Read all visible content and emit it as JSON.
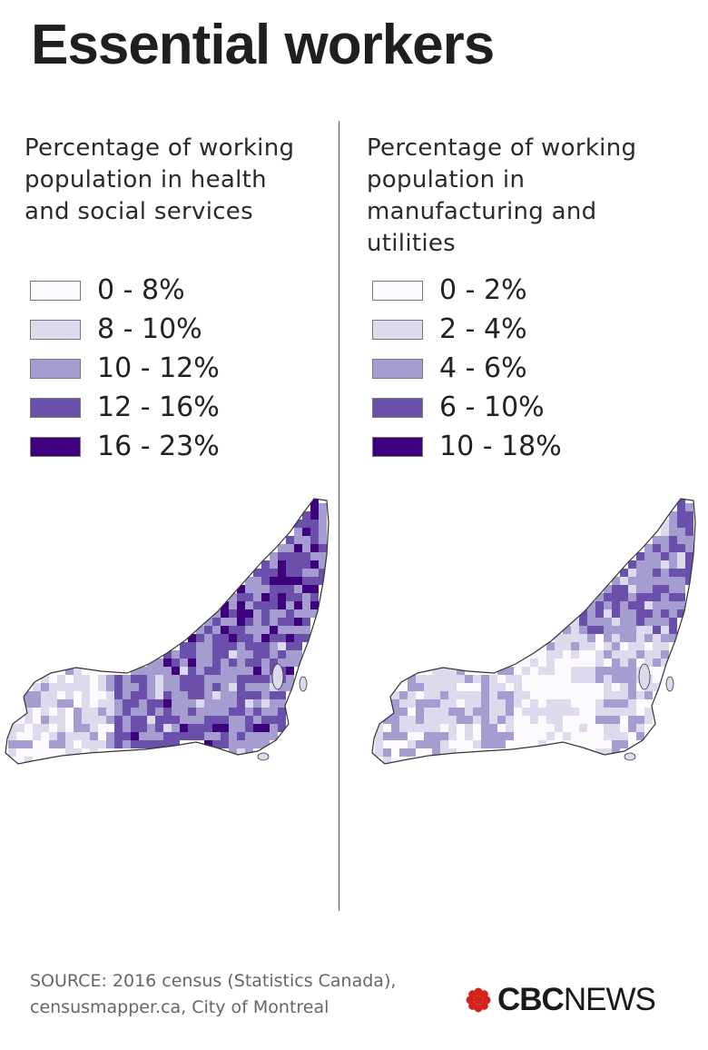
{
  "title": "Essential workers",
  "colors": {
    "class1": "#fbfaff",
    "class2": "#dcdaed",
    "class3": "#a59dd0",
    "class4": "#6a50ab",
    "class5": "#3f007d",
    "border": "#333333",
    "cbc_red": "#d2241a"
  },
  "panels": [
    {
      "title": "Percentage of working\npopulation in health\nand social services",
      "legend": [
        {
          "label": "0 - 8%",
          "color": "#fbfaff"
        },
        {
          "label": "8 - 10%",
          "color": "#dcdaed"
        },
        {
          "label": "10 - 12%",
          "color": "#a59dd0"
        },
        {
          "label": "12 - 16%",
          "color": "#6a50ab"
        },
        {
          "label": "16 - 23%",
          "color": "#3f007d"
        }
      ]
    },
    {
      "title": "Percentage of working\npopulation in\nmanufacturing and\nutilities",
      "legend": [
        {
          "label": "0 - 2%",
          "color": "#fbfaff"
        },
        {
          "label": "2 - 4%",
          "color": "#dcdaed"
        },
        {
          "label": "4 - 6%",
          "color": "#a59dd0"
        },
        {
          "label": "6 - 10%",
          "color": "#6a50ab"
        },
        {
          "label": "10 - 18%",
          "color": "#3f007d"
        }
      ]
    }
  ],
  "source": "SOURCE: 2016 census (Statistics Canada), censusmapper.ca, City of Montreal",
  "logo": {
    "bold": "CBC",
    "regular": "NEWS",
    "icon": "cbc-gem-icon"
  }
}
